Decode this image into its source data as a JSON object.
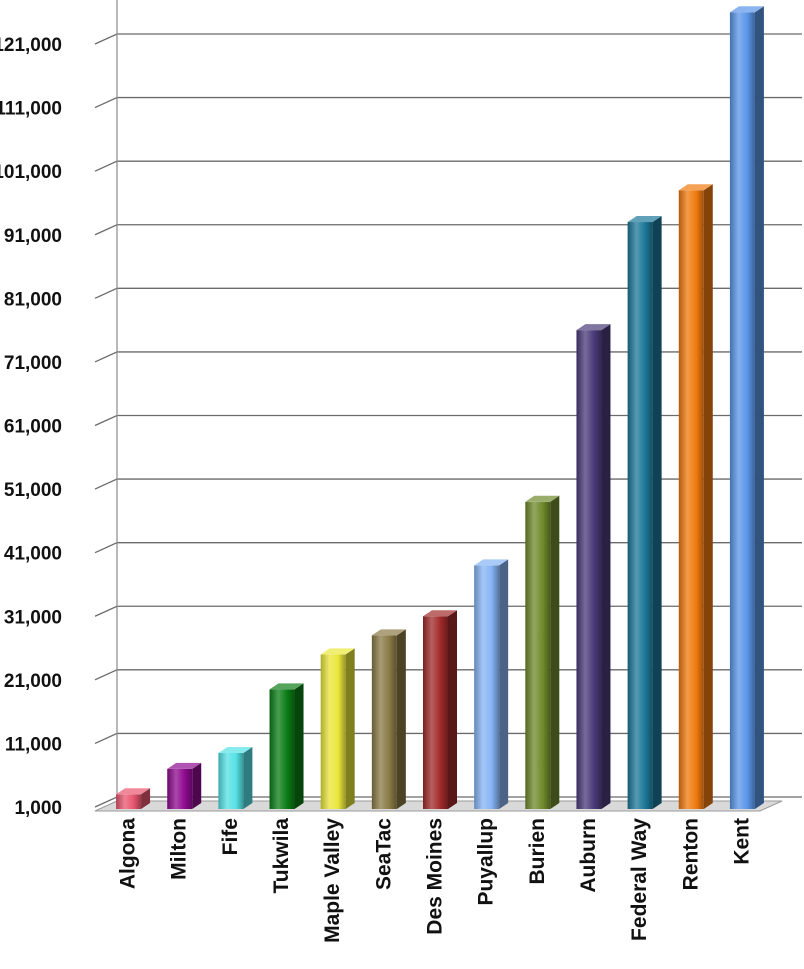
{
  "chart_data": {
    "type": "bar",
    "title": "",
    "xlabel": "",
    "ylabel": "",
    "style": "3d-column",
    "grid": true,
    "legend": "none",
    "y_ticks": [
      1000,
      11000,
      21000,
      31000,
      41000,
      51000,
      61000,
      71000,
      81000,
      91000,
      101000,
      111000,
      121000
    ],
    "y_tick_labels": [
      "1,000",
      "11,000",
      "21,000",
      "31,000",
      "41,000",
      "51,000",
      "61,000",
      "71,000",
      "81,000",
      "91,000",
      "101,000",
      "111,000",
      "121,000"
    ],
    "ylim": [
      1000,
      121000
    ],
    "categories": [
      "Algona",
      "Milton",
      "Fife",
      "Tukwila",
      "Maple Valley",
      "SeaTac",
      "Des Moines",
      "Puyallup",
      "Burien",
      "Auburn",
      "Federal Way",
      "Renton",
      "Kent"
    ],
    "values": [
      3000,
      7000,
      9500,
      19500,
      25000,
      28000,
      31000,
      39000,
      49000,
      76000,
      93000,
      98000,
      126000
    ],
    "colors": [
      "#e8566f",
      "#8e0a8f",
      "#54e2e6",
      "#0b7d16",
      "#e9e63a",
      "#8a7a45",
      "#a12a2a",
      "#86b4f5",
      "#6f8a2c",
      "#4b3a7a",
      "#1c7898",
      "#f07a0e",
      "#5a95e8"
    ]
  }
}
